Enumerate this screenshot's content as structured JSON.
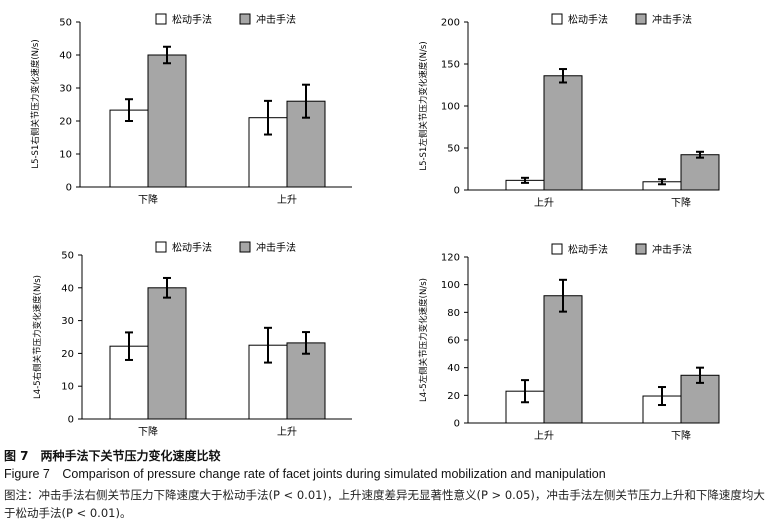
{
  "colors": {
    "mobilization": "#ffffff",
    "manipulation": "#a6a6a6",
    "axis": "#000000"
  },
  "legend": {
    "mobilization": "松动手法",
    "manipulation": "冲击手法"
  },
  "chart_data": [
    {
      "type": "bar",
      "ylabel": "L5-S1右侧关节压力变化速度(N/s)",
      "ylim": [
        0,
        50
      ],
      "yticks": [
        "0",
        "10",
        "20",
        "30",
        "40",
        "50"
      ],
      "categories": [
        "下降",
        "上升"
      ],
      "series": [
        {
          "name": "松动手法",
          "values": [
            23.3,
            21.0
          ],
          "errors": [
            3.3,
            5.1
          ]
        },
        {
          "name": "冲击手法",
          "values": [
            40.0,
            26.0
          ],
          "errors": [
            2.5,
            5.0
          ]
        }
      ],
      "legend_position": "top-right"
    },
    {
      "type": "bar",
      "ylabel": "L5-S1左侧关节压力变化速度(N/s)",
      "ylim": [
        0,
        200
      ],
      "yticks": [
        "0",
        "50",
        "100",
        "150",
        "200"
      ],
      "categories": [
        "上升",
        "下降"
      ],
      "series": [
        {
          "name": "松动手法",
          "values": [
            11.5,
            9.8
          ],
          "errors": [
            3.0,
            3.0
          ]
        },
        {
          "name": "冲击手法",
          "values": [
            136.0,
            42.0
          ],
          "errors": [
            8.0,
            3.5
          ]
        }
      ],
      "legend_position": "top-right"
    },
    {
      "type": "bar",
      "ylabel": "L4-5右侧关节压力变化速度(N/s)",
      "ylim": [
        0,
        50
      ],
      "yticks": [
        "0",
        "10",
        "20",
        "30",
        "40",
        "50"
      ],
      "categories": [
        "下降",
        "上升"
      ],
      "series": [
        {
          "name": "松动手法",
          "values": [
            22.2,
            22.5
          ],
          "errors": [
            4.2,
            5.3
          ]
        },
        {
          "name": "冲击手法",
          "values": [
            40.0,
            23.2
          ],
          "errors": [
            3.0,
            3.3
          ]
        }
      ],
      "legend_position": "top-right"
    },
    {
      "type": "bar",
      "ylabel": "L4-5左侧关节压力变化速度(N/s)",
      "ylim": [
        0,
        120
      ],
      "yticks": [
        "0",
        "20",
        "40",
        "60",
        "80",
        "100",
        "120"
      ],
      "categories": [
        "上升",
        "下降"
      ],
      "series": [
        {
          "name": "松动手法",
          "values": [
            23.0,
            19.5
          ],
          "errors": [
            8.0,
            6.5
          ]
        },
        {
          "name": "冲击手法",
          "values": [
            92.0,
            34.5
          ],
          "errors": [
            11.5,
            5.5
          ]
        }
      ],
      "legend_position": "top-right"
    }
  ],
  "caption": {
    "cn_title": "图 7　两种手法下关节压力变化速度比较",
    "en_title": "Figure 7　Comparison of pressure change rate of facet joints during simulated mobilization and manipulation",
    "note": "图注：冲击手法右侧关节压力下降速度大于松动手法(P < 0.01)，上升速度差异无显著性意义(P > 0.05)，冲击手法左侧关节压力上升和下降速度均大于松动手法(P < 0.01)。"
  }
}
